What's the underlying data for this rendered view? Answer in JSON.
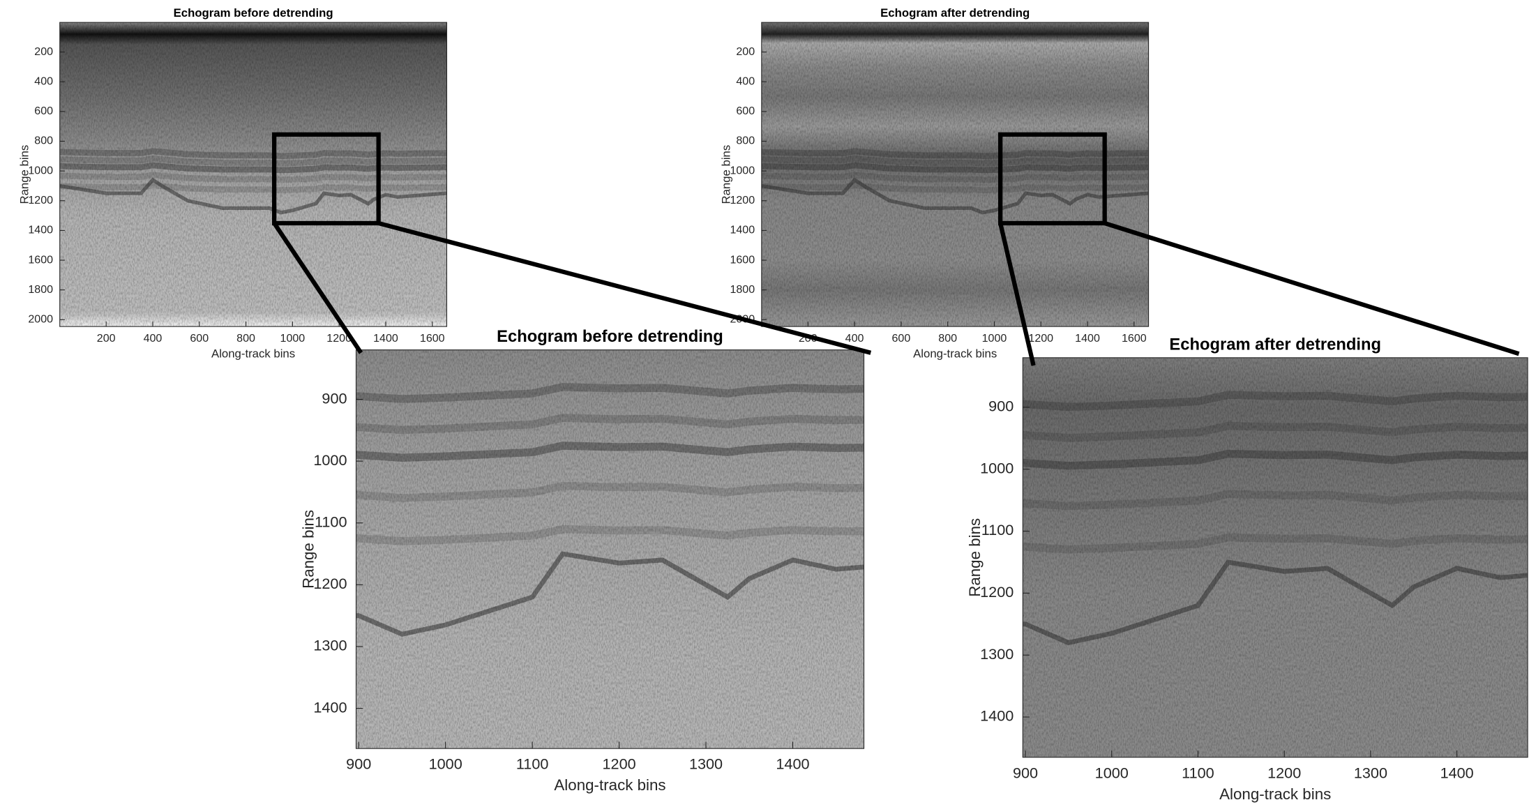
{
  "chart_data": [
    {
      "type": "image",
      "title": "Echogram before detrending",
      "xlabel": "Along-track bins",
      "ylabel": "Range bins",
      "xlim": [
        1,
        1662
      ],
      "ylim": [
        1,
        2046
      ],
      "xticks": [
        200,
        400,
        600,
        800,
        1000,
        1200,
        1400,
        1600
      ],
      "yticks": [
        200,
        400,
        600,
        800,
        1000,
        1200,
        1400,
        1600,
        1800,
        2000
      ]
    },
    {
      "type": "image",
      "title": "Echogram after detrending",
      "xlabel": "Along-track bins",
      "ylabel": "Range bins",
      "xlim": [
        1,
        1662
      ],
      "ylim": [
        1,
        2046
      ],
      "xticks": [
        200,
        400,
        600,
        800,
        1000,
        1200,
        1400,
        1600
      ],
      "yticks": [
        200,
        400,
        600,
        800,
        1000,
        1200,
        1400,
        1600,
        1800,
        2000
      ]
    },
    {
      "type": "image",
      "title": "Echogram before detrending",
      "xlabel": "Along-track bins",
      "ylabel": "Range bins",
      "xlim": [
        897,
        1482
      ],
      "ylim": [
        820,
        1465
      ],
      "xticks": [
        900,
        1000,
        1100,
        1200,
        1300,
        1400
      ],
      "yticks": [
        900,
        1000,
        1100,
        1200,
        1300,
        1400
      ]
    },
    {
      "type": "image",
      "title": "Echogram after detrending",
      "xlabel": "Along-track bins",
      "ylabel": "Range bins",
      "xlim": [
        897,
        1482
      ],
      "ylim": [
        820,
        1465
      ],
      "xticks": [
        900,
        1000,
        1100,
        1200,
        1300,
        1400
      ],
      "yticks": [
        900,
        1000,
        1100,
        1200,
        1300,
        1400
      ]
    }
  ]
}
